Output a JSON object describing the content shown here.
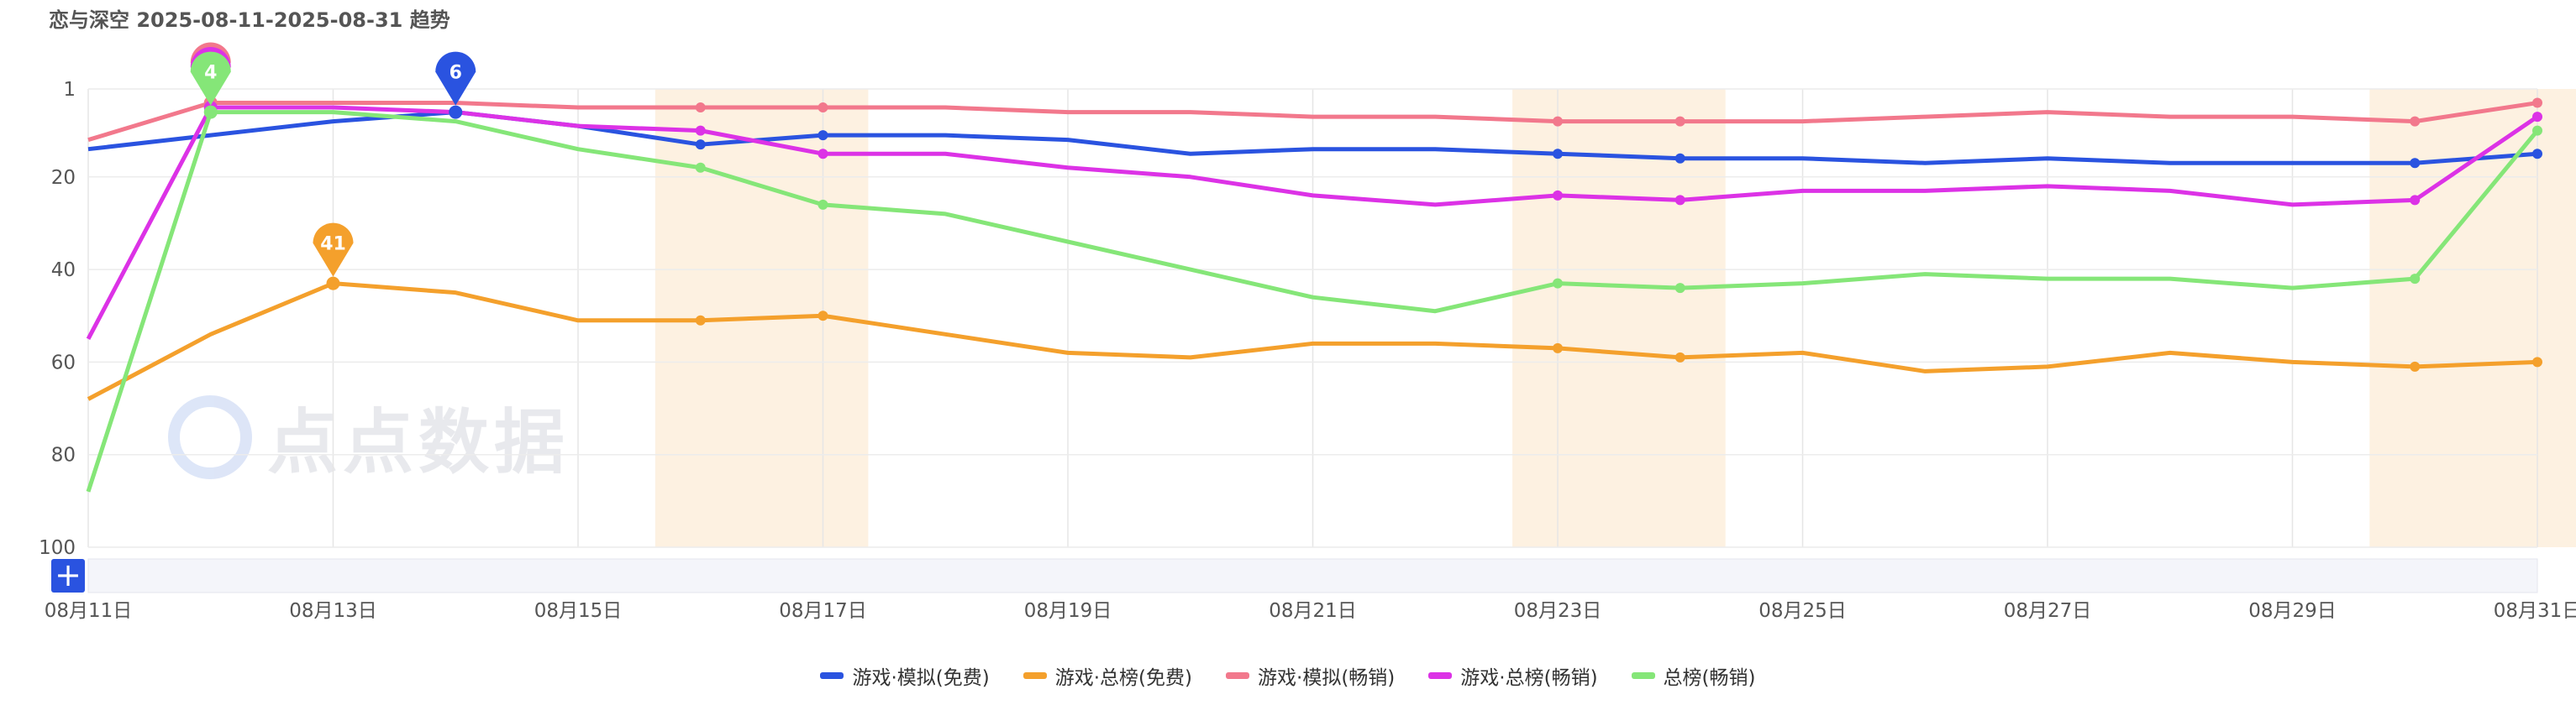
{
  "title": "恋与深空 2025-08-11-2025-08-31 趋势",
  "watermark": "点点数据",
  "chart_data": {
    "type": "line",
    "categories": [
      "08月11日",
      "08月12日",
      "08月13日",
      "08月14日",
      "08月15日",
      "08月16日",
      "08月17日",
      "08月18日",
      "08月19日",
      "08月20日",
      "08月21日",
      "08月22日",
      "08月23日",
      "08月24日",
      "08月25日",
      "08月26日",
      "08月27日",
      "08月28日",
      "08月29日",
      "08月30日",
      "08月31日"
    ],
    "x_tick_labels": [
      "08月11日",
      "08月13日",
      "08月15日",
      "08月17日",
      "08月19日",
      "08月21日",
      "08月23日",
      "08月25日",
      "08月27日",
      "08月29日",
      "08月31日"
    ],
    "y_tick_labels": [
      "1",
      "20",
      "40",
      "60",
      "80",
      "100"
    ],
    "ylim": [
      100,
      1
    ],
    "y_reversed": true,
    "grid": true,
    "legend_position": "bottom",
    "shaded_date_ranges": [
      [
        "08月16日",
        "08月17日"
      ],
      [
        "08月23日",
        "08月24日"
      ],
      [
        "08月30日",
        "08月31日"
      ]
    ],
    "series": [
      {
        "name": "游戏·模拟(免费)",
        "color": "#2a53e0",
        "values": [
          14,
          11,
          8,
          6,
          9,
          13,
          11,
          11,
          12,
          15,
          14,
          14,
          15,
          16,
          16,
          17,
          16,
          17,
          17,
          17,
          15
        ]
      },
      {
        "name": "游戏·总榜(免费)",
        "color": "#f4a02c",
        "values": [
          68,
          54,
          43,
          45,
          51,
          51,
          50,
          54,
          58,
          59,
          56,
          56,
          57,
          59,
          58,
          62,
          61,
          58,
          60,
          61,
          60
        ]
      },
      {
        "name": "游戏·模拟(畅销)",
        "color": "#f2788c",
        "values": [
          12,
          4,
          4,
          4,
          5,
          5,
          5,
          5,
          6,
          6,
          7,
          7,
          8,
          8,
          8,
          7,
          6,
          7,
          7,
          8,
          4
        ]
      },
      {
        "name": "游戏·总榜(畅销)",
        "color": "#dc32e6",
        "values": [
          55,
          5,
          5,
          6,
          9,
          10,
          15,
          15,
          18,
          20,
          24,
          26,
          24,
          25,
          23,
          23,
          22,
          23,
          26,
          25,
          7
        ]
      },
      {
        "name": "总榜(畅销)",
        "color": "#85e678",
        "values": [
          88,
          6,
          6,
          8,
          14,
          18,
          26,
          28,
          34,
          40,
          46,
          49,
          43,
          44,
          43,
          41,
          42,
          42,
          44,
          42,
          10
        ]
      }
    ],
    "markers": [
      {
        "series": "游戏·模拟(畅销)",
        "category": "08月12日",
        "label": "1"
      },
      {
        "series": "游戏·总榜(畅销)",
        "category": "08月12日",
        "label": "1"
      },
      {
        "series": "总榜(畅销)",
        "category": "08月12日",
        "label": "4"
      },
      {
        "series": "游戏·模拟(免费)",
        "category": "08月14日",
        "label": "6"
      },
      {
        "series": "游戏·总榜(免费)",
        "category": "08月13日",
        "label": "41"
      }
    ]
  }
}
